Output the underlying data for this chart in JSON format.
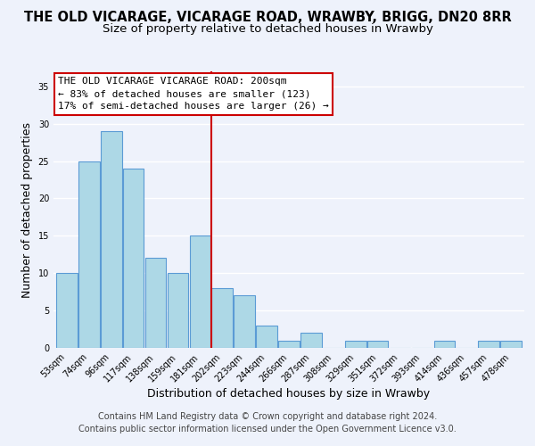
{
  "title": "THE OLD VICARAGE, VICARAGE ROAD, WRAWBY, BRIGG, DN20 8RR",
  "subtitle": "Size of property relative to detached houses in Wrawby",
  "xlabel": "Distribution of detached houses by size in Wrawby",
  "ylabel": "Number of detached properties",
  "bar_labels": [
    "53sqm",
    "74sqm",
    "96sqm",
    "117sqm",
    "138sqm",
    "159sqm",
    "181sqm",
    "202sqm",
    "223sqm",
    "244sqm",
    "266sqm",
    "287sqm",
    "308sqm",
    "329sqm",
    "351sqm",
    "372sqm",
    "393sqm",
    "414sqm",
    "436sqm",
    "457sqm",
    "478sqm"
  ],
  "bar_values": [
    10,
    25,
    29,
    24,
    12,
    10,
    15,
    8,
    7,
    3,
    1,
    2,
    0,
    1,
    1,
    0,
    0,
    1,
    0,
    1,
    1
  ],
  "bar_color": "#add8e6",
  "bar_edge_color": "#5b9bd5",
  "vline_bar_index": 7,
  "vline_color": "#cc0000",
  "annotation_title": "THE OLD VICARAGE VICARAGE ROAD: 200sqm",
  "annotation_line1": "← 83% of detached houses are smaller (123)",
  "annotation_line2": "17% of semi-detached houses are larger (26) →",
  "annotation_box_edge": "#cc0000",
  "ylim": [
    0,
    37
  ],
  "yticks": [
    0,
    5,
    10,
    15,
    20,
    25,
    30,
    35
  ],
  "footer1": "Contains HM Land Registry data © Crown copyright and database right 2024.",
  "footer2": "Contains public sector information licensed under the Open Government Licence v3.0.",
  "background_color": "#eef2fb",
  "grid_color": "#ffffff",
  "title_fontsize": 10.5,
  "subtitle_fontsize": 9.5,
  "axis_label_fontsize": 9,
  "tick_fontsize": 7,
  "footer_fontsize": 7,
  "ann_fontsize": 8
}
